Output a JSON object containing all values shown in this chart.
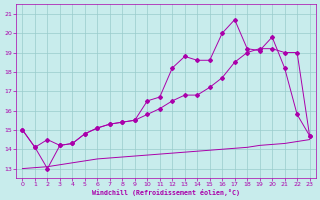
{
  "xlabel": "Windchill (Refroidissement éolien,°C)",
  "xlim": [
    -0.5,
    23.5
  ],
  "ylim": [
    12.5,
    21.5
  ],
  "xticks": [
    0,
    1,
    2,
    3,
    4,
    5,
    6,
    7,
    8,
    9,
    10,
    11,
    12,
    13,
    14,
    15,
    16,
    17,
    18,
    19,
    20,
    21,
    22,
    23
  ],
  "yticks": [
    13,
    14,
    15,
    16,
    17,
    18,
    19,
    20,
    21
  ],
  "background_color": "#c8ecec",
  "line_color": "#aa00aa",
  "grid_color": "#99cccc",
  "line1_x": [
    0,
    1,
    2,
    3,
    4,
    5,
    6,
    7,
    8,
    9,
    10,
    11,
    12,
    13,
    14,
    15,
    16,
    17,
    18,
    19,
    20,
    21,
    22,
    23
  ],
  "line1_y": [
    15.0,
    14.1,
    13.0,
    14.2,
    14.3,
    14.8,
    15.1,
    15.3,
    15.4,
    15.5,
    16.5,
    16.7,
    18.2,
    18.8,
    18.6,
    18.6,
    20.0,
    20.7,
    19.2,
    19.1,
    19.8,
    18.2,
    15.8,
    14.7
  ],
  "line2_x": [
    0,
    1,
    2,
    3,
    4,
    5,
    6,
    7,
    8,
    9,
    10,
    11,
    12,
    13,
    14,
    15,
    16,
    17,
    18,
    19,
    20,
    21,
    22,
    23
  ],
  "line2_y": [
    15.0,
    14.1,
    14.5,
    14.2,
    14.3,
    14.8,
    15.1,
    15.3,
    15.4,
    15.5,
    15.8,
    16.1,
    16.5,
    16.8,
    16.8,
    17.2,
    17.7,
    18.5,
    19.0,
    19.2,
    19.2,
    19.0,
    19.0,
    14.7
  ],
  "line3_x": [
    0,
    1,
    2,
    3,
    4,
    5,
    6,
    7,
    8,
    9,
    10,
    11,
    12,
    13,
    14,
    15,
    16,
    17,
    18,
    19,
    20,
    21,
    22,
    23
  ],
  "line3_y": [
    13.0,
    13.05,
    13.1,
    13.2,
    13.3,
    13.4,
    13.5,
    13.55,
    13.6,
    13.65,
    13.7,
    13.75,
    13.8,
    13.85,
    13.9,
    13.95,
    14.0,
    14.05,
    14.1,
    14.2,
    14.25,
    14.3,
    14.4,
    14.5
  ]
}
